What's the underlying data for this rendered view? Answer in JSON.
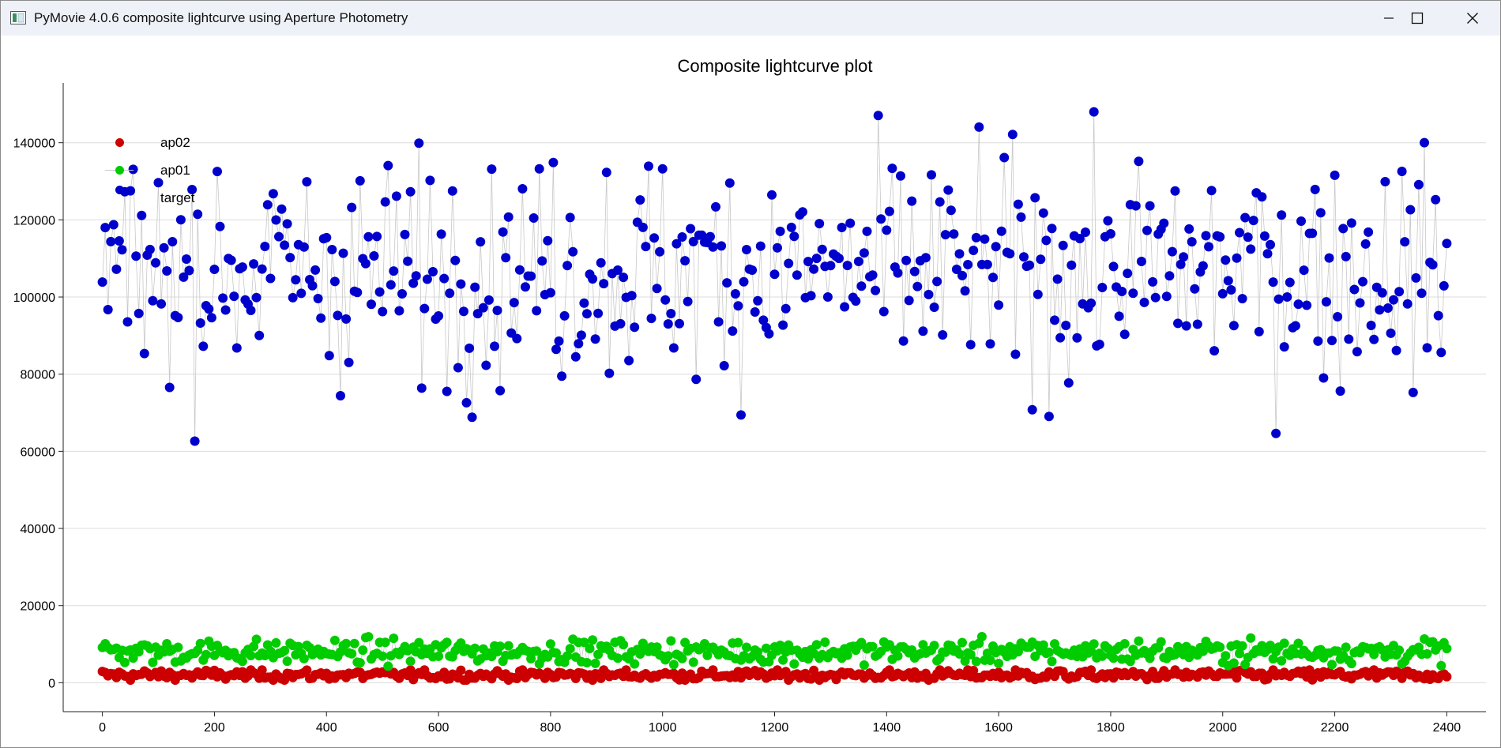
{
  "window": {
    "title": "PyMovie 4.0.6 composite lightcurve using Aperture Photometry",
    "icon": "app-window-icon",
    "controls": [
      "minimize-icon",
      "maximize-icon",
      "close-icon"
    ]
  },
  "chart_data": {
    "type": "scatter",
    "title": "Composite lightcurve plot",
    "xlabel": "",
    "ylabel": "",
    "xlim": [
      -70,
      2470
    ],
    "ylim": [
      -7500,
      155500
    ],
    "xticks": [
      0,
      200,
      400,
      600,
      800,
      1000,
      1200,
      1400,
      1600,
      1800,
      2000,
      2200,
      2400
    ],
    "yticks": [
      0,
      20000,
      40000,
      60000,
      80000,
      100000,
      120000,
      140000
    ],
    "grid": "horizontal",
    "legend_position": "top-left",
    "x_start": 0,
    "x_end": 2400,
    "series": [
      {
        "name": "ap02",
        "color": "#cc0000",
        "mean": 2000,
        "spread": 700,
        "min": 700,
        "max": 3300
      },
      {
        "name": "ap01",
        "color": "#00cc00",
        "mean": 8100,
        "spread": 1500,
        "min": 4200,
        "max": 13000
      },
      {
        "name": "target",
        "color": "#0000cc",
        "mean": 107000,
        "spread": 14000,
        "min": 61000,
        "max": 148000
      }
    ]
  }
}
